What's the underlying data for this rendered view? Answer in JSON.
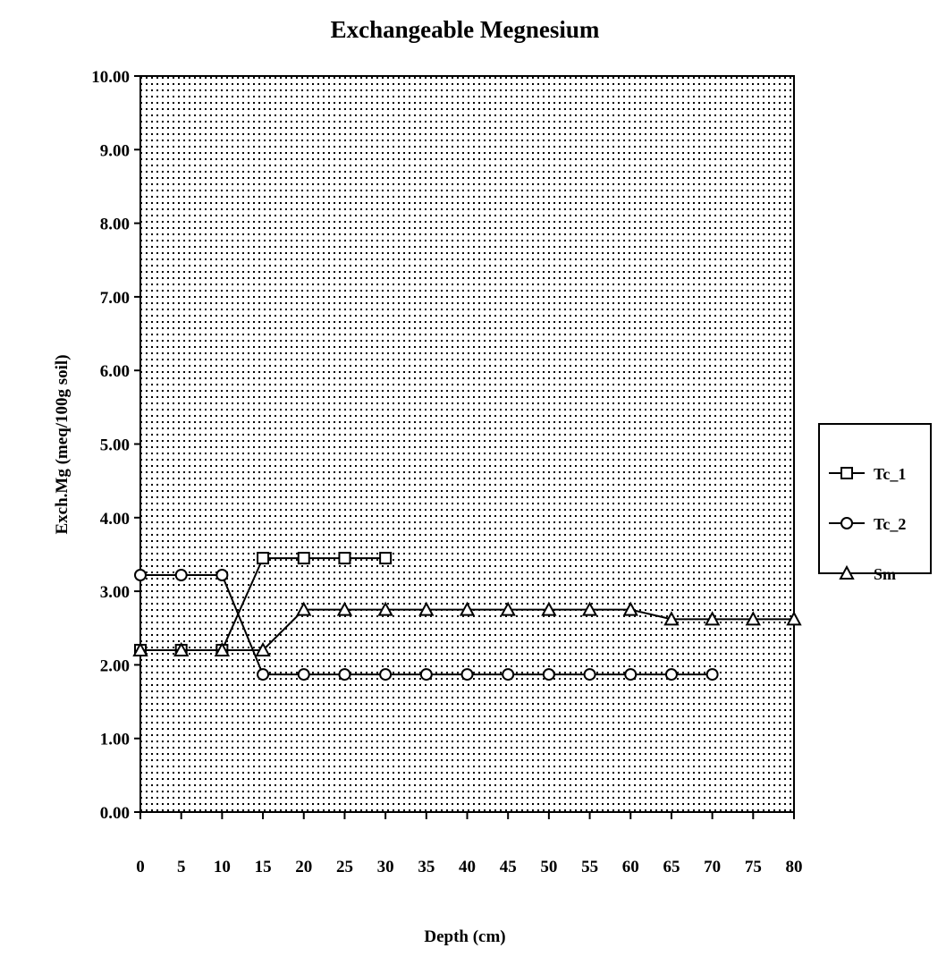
{
  "chart_data": {
    "type": "line",
    "title": "Exchangeable Megnesium",
    "xlabel": "Depth (cm)",
    "ylabel": "Exch.Mg  (meq/100g soil)",
    "x": [
      0,
      5,
      10,
      15,
      20,
      25,
      30,
      35,
      40,
      45,
      50,
      55,
      60,
      65,
      70,
      75,
      80
    ],
    "x_tick_labels": [
      "0",
      "5",
      "10",
      "15",
      "20",
      "25",
      "30",
      "35",
      "40",
      "45",
      "50",
      "55",
      "60",
      "65",
      "70",
      "75",
      "80"
    ],
    "y_tick_labels": [
      "0.00",
      "1.00",
      "2.00",
      "3.00",
      "4.00",
      "5.00",
      "6.00",
      "7.00",
      "8.00",
      "9.00",
      "10.00"
    ],
    "xlim": [
      0,
      80
    ],
    "ylim": [
      0,
      10
    ],
    "grid": true,
    "legend_position": "right",
    "series": [
      {
        "name": "Tc_1",
        "marker": "square",
        "x": [
          0,
          5,
          10,
          15,
          20,
          25,
          30
        ],
        "values": [
          2.2,
          2.2,
          2.2,
          3.45,
          3.45,
          3.45,
          3.45
        ]
      },
      {
        "name": "Tc_2",
        "marker": "circle",
        "x": [
          0,
          5,
          10,
          15,
          20,
          25,
          30,
          35,
          40,
          45,
          50,
          55,
          60,
          65,
          70
        ],
        "values": [
          3.22,
          3.22,
          3.22,
          1.87,
          1.87,
          1.87,
          1.87,
          1.87,
          1.87,
          1.87,
          1.87,
          1.87,
          1.87,
          1.87,
          1.87
        ]
      },
      {
        "name": "Sm",
        "marker": "triangle",
        "x": [
          0,
          5,
          10,
          15,
          20,
          25,
          30,
          35,
          40,
          45,
          50,
          55,
          60,
          65,
          70,
          75,
          80
        ],
        "values": [
          2.2,
          2.2,
          2.2,
          2.2,
          2.75,
          2.75,
          2.75,
          2.75,
          2.75,
          2.75,
          2.75,
          2.75,
          2.75,
          2.62,
          2.62,
          2.62,
          2.62
        ]
      }
    ]
  }
}
